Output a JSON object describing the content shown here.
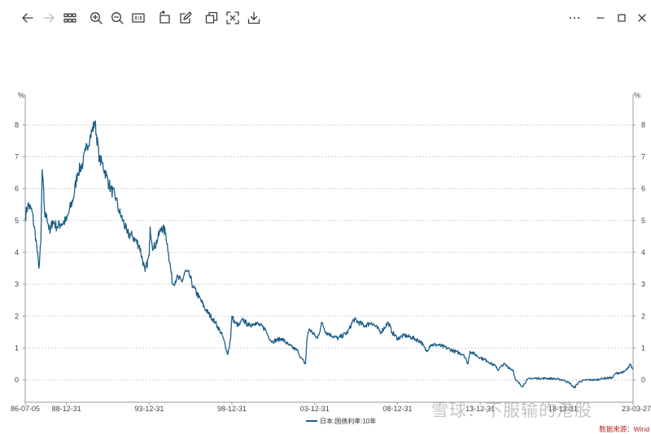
{
  "toolbar": {
    "buttons": [
      {
        "icon": "arrow-left-icon"
      },
      {
        "icon": "arrow-right-icon"
      },
      {
        "icon": "grid-icon"
      },
      {
        "icon": "zoom-in-icon"
      },
      {
        "icon": "zoom-out-icon"
      },
      {
        "icon": "actual-size-icon",
        "label": "1:1"
      },
      {
        "icon": "rotate-icon"
      },
      {
        "icon": "edit-icon"
      },
      {
        "icon": "copy-icon"
      },
      {
        "icon": "fit-screen-icon"
      },
      {
        "icon": "download-icon"
      }
    ],
    "window": {
      "more": "•••",
      "minimize": "–",
      "maximize": "□",
      "close": "×"
    }
  },
  "chart_data": {
    "type": "line",
    "title": "",
    "ylabel_left": "%",
    "ylabel_right": "%",
    "ylim": [
      -0.7,
      8.7
    ],
    "yticks": [
      0,
      1,
      2,
      3,
      4,
      5,
      6,
      7,
      8
    ],
    "xlim": [
      "1986-07-05",
      "2023-03-27"
    ],
    "xtick_labels": [
      "86-07-05",
      "88-12-31",
      "93-12-31",
      "98-12-31",
      "03-12-31",
      "08-12-31",
      "13-12-31",
      "18-12-31",
      "23-03-27"
    ],
    "grid": "horizontal-dashed",
    "color": "#1c5f87",
    "legend": {
      "position": "bottom-center"
    },
    "series": [
      {
        "name": "日本:国债利率:10年",
        "x": [
          "1986-07-05",
          "1986-09-01",
          "1986-12-01",
          "1987-03-01",
          "1987-05-01",
          "1987-06-15",
          "1987-07-15",
          "1987-09-15",
          "1987-10-20",
          "1987-12-31",
          "1988-03-01",
          "1988-06-01",
          "1988-09-01",
          "1988-12-31",
          "1989-03-01",
          "1989-06-01",
          "1989-09-01",
          "1989-12-31",
          "1990-03-01",
          "1990-06-01",
          "1990-09-20",
          "1990-12-31",
          "1991-03-01",
          "1991-06-01",
          "1991-09-01",
          "1991-12-31",
          "1992-03-01",
          "1992-06-01",
          "1992-09-01",
          "1992-12-31",
          "1993-06-01",
          "1993-10-01",
          "1993-12-31",
          "1994-01-20",
          "1994-04-01",
          "1994-07-01",
          "1994-10-01",
          "1994-12-31",
          "1995-03-01",
          "1995-06-01",
          "1995-09-01",
          "1995-12-31",
          "1996-03-01",
          "1996-06-01",
          "1996-09-01",
          "1996-12-31",
          "1997-06-01",
          "1997-12-31",
          "1998-06-01",
          "1998-10-01",
          "1998-12-01",
          "1998-12-31",
          "1999-03-01",
          "1999-06-01",
          "1999-09-01",
          "1999-12-31",
          "2000-06-01",
          "2000-12-31",
          "2001-03-01",
          "2001-06-01",
          "2001-12-31",
          "2002-06-01",
          "2002-12-31",
          "2003-03-01",
          "2003-06-10",
          "2003-07-15",
          "2003-09-01",
          "2003-12-31",
          "2004-03-01",
          "2004-06-10",
          "2004-09-01",
          "2004-12-31",
          "2005-06-01",
          "2005-12-31",
          "2006-05-10",
          "2006-12-31",
          "2007-06-10",
          "2007-12-31",
          "2008-06-10",
          "2008-09-01",
          "2008-12-31",
          "2009-06-01",
          "2009-12-31",
          "2010-06-01",
          "2010-10-01",
          "2010-12-31",
          "2011-06-01",
          "2011-12-31",
          "2012-06-01",
          "2012-12-31",
          "2013-04-05",
          "2013-05-20",
          "2013-12-31",
          "2014-06-01",
          "2014-12-31",
          "2015-01-20",
          "2015-06-01",
          "2015-12-31",
          "2016-02-15",
          "2016-07-20",
          "2016-11-01",
          "2016-12-31",
          "2017-06-01",
          "2017-12-31",
          "2018-06-01",
          "2018-12-31",
          "2019-06-01",
          "2019-08-30",
          "2019-12-31",
          "2020-06-01",
          "2020-12-31",
          "2021-06-01",
          "2021-12-31",
          "2022-03-01",
          "2022-06-15",
          "2022-09-01",
          "2022-12-31",
          "2023-01-15",
          "2023-03-27"
        ],
        "y": [
          5.1,
          5.5,
          5.3,
          4.4,
          3.5,
          4.3,
          6.6,
          5.1,
          5.2,
          4.6,
          5.0,
          4.8,
          4.9,
          5.0,
          5.3,
          5.7,
          6.5,
          6.8,
          7.2,
          7.6,
          8.1,
          6.9,
          6.8,
          6.4,
          6.0,
          5.7,
          5.3,
          5.0,
          4.6,
          4.5,
          4.2,
          3.4,
          3.9,
          4.8,
          4.1,
          4.4,
          4.8,
          4.6,
          4.0,
          3.0,
          3.2,
          3.1,
          3.4,
          3.3,
          2.9,
          2.6,
          2.2,
          1.8,
          1.4,
          0.8,
          1.3,
          2.0,
          1.8,
          1.7,
          1.9,
          1.7,
          1.8,
          1.6,
          1.4,
          1.2,
          1.3,
          1.1,
          0.9,
          0.7,
          0.5,
          1.3,
          1.6,
          1.4,
          1.3,
          1.8,
          1.5,
          1.4,
          1.3,
          1.5,
          1.9,
          1.7,
          1.8,
          1.5,
          1.8,
          1.5,
          1.3,
          1.4,
          1.3,
          1.2,
          0.9,
          1.1,
          1.1,
          1.0,
          0.9,
          0.8,
          0.5,
          0.9,
          0.7,
          0.6,
          0.4,
          0.3,
          0.5,
          0.3,
          0.0,
          -0.2,
          0.0,
          0.05,
          0.05,
          0.05,
          0.04,
          0.0,
          -0.1,
          -0.25,
          -0.05,
          0.0,
          0.0,
          0.05,
          0.07,
          0.2,
          0.23,
          0.24,
          0.4,
          0.5,
          0.33
        ]
      }
    ]
  },
  "legend_label": "日本:国债利率:10年",
  "source": "数据来源：Wind",
  "watermark": "雪球：不服输的港股"
}
